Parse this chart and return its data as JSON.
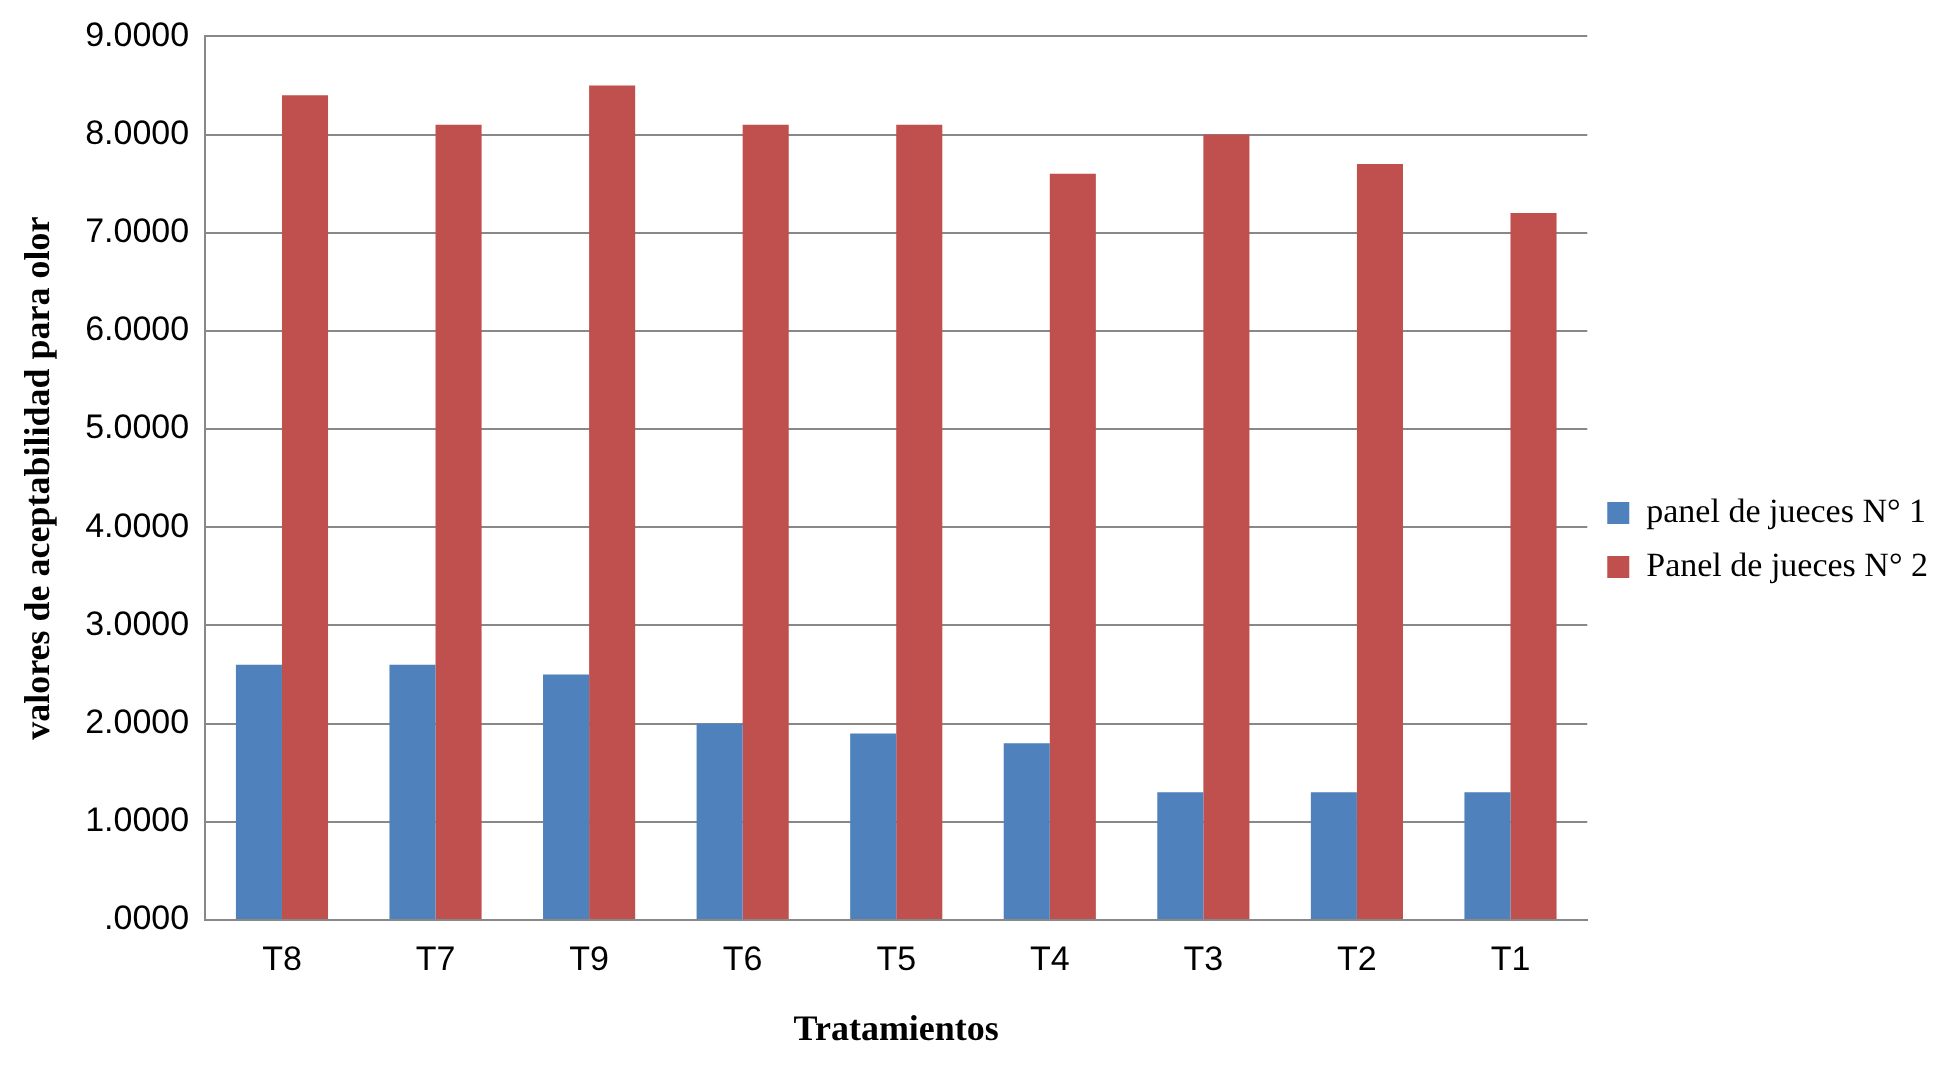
{
  "chart_data": {
    "type": "bar",
    "xlabel": "Tratamientos",
    "ylabel": "valores de aceptabilidad para olor",
    "categories": [
      "T8",
      "T7",
      "T9",
      "T6",
      "T5",
      "T4",
      "T3",
      "T2",
      "T1"
    ],
    "series": [
      {
        "name": "panel de jueces N° 1",
        "color": "#4f81bd",
        "values": [
          2.6,
          2.6,
          2.5,
          2.0,
          1.9,
          1.8,
          1.3,
          1.3,
          1.3
        ]
      },
      {
        "name": "Panel de jueces N° 2",
        "color": "#c0504d",
        "values": [
          8.4,
          8.1,
          8.5,
          8.1,
          8.1,
          7.6,
          8.0,
          7.7,
          7.2
        ]
      }
    ],
    "ylim": [
      0,
      9
    ],
    "yticks": [
      {
        "value": 0,
        "label": ".0000"
      },
      {
        "value": 1,
        "label": "1.0000"
      },
      {
        "value": 2,
        "label": "2.0000"
      },
      {
        "value": 3,
        "label": "3.0000"
      },
      {
        "value": 4,
        "label": "4.0000"
      },
      {
        "value": 5,
        "label": "5.0000"
      },
      {
        "value": 6,
        "label": "6.0000"
      },
      {
        "value": 7,
        "label": "7.0000"
      },
      {
        "value": 8,
        "label": "8.0000"
      },
      {
        "value": 9,
        "label": "9.0000"
      }
    ],
    "grid": "y",
    "legend": "right"
  }
}
